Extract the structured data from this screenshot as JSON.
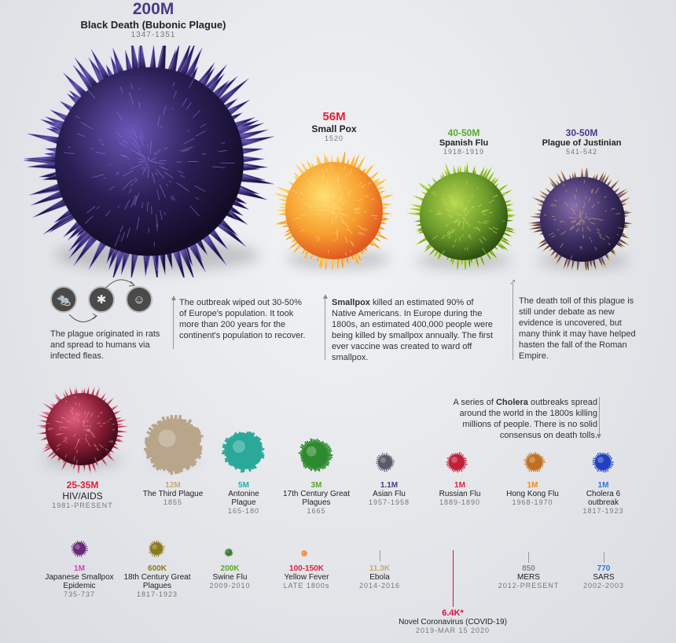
{
  "colors": {
    "black_death": "#3a2a6e",
    "smallpox": "#f6a02a",
    "spanish_flu": "#6a9a2a",
    "justinian": "#4a3a6e",
    "hiv": "#8a1e36",
    "third_plague": "#b8a58a",
    "antonine": "#2aa89a",
    "century17": "#2e8a2e",
    "asian_flu": "#5a5a6a",
    "russian_flu": "#c0203a",
    "hong_kong_flu": "#c07020",
    "cholera": "#2040c0",
    "japanese": "#6a2a7a",
    "century18": "#8a7a20",
    "swine": "#3a7a2a",
    "yellow_fever": "#f09040",
    "ebola": "#c8b08a",
    "mers": "#888888",
    "sars": "#888888",
    "covid": "#e01040",
    "red": "#e0203a",
    "green": "#5aa82a",
    "purple": "#4a3a8a",
    "orange": "#f08a20",
    "teal": "#20b0b0",
    "blue": "#2a7ad8",
    "olive": "#8a7a10",
    "pink": "#d04aa0",
    "tan": "#c8a878",
    "gray": "#888888"
  },
  "black_death": {
    "value": "200M",
    "name": "Black Death (Bubonic Plague)",
    "years": "1347-1351"
  },
  "smallpox": {
    "value": "56M",
    "name": "Small Pox",
    "years": "1520"
  },
  "spanish_flu": {
    "value": "40-50M",
    "name": "Spanish Flu",
    "years": "1918-1919"
  },
  "justinian": {
    "value": "30-50M",
    "name": "Plague of Justinian",
    "years": "541-542"
  },
  "notes": {
    "rats": "The plague originated in rats and spread to humans via infected fleas.",
    "outbreak": "The outbreak wiped out 30-50% of Europe's population. It took more than 200 years for the continent's population to recover.",
    "smallpox_bold": "Smallpox",
    "smallpox_rest": " killed an estimated 90% of Native Americans. In Europe during the 1800s, an estimated 400,000 people were being killed by smallpox annually. The first ever vaccine was created to ward off smallpox.",
    "justinian": "The death toll of this plague is still under debate as new evidence is uncovered, but many think it may have helped hasten the fall of the Roman Empire.",
    "cholera_pre": "A series of ",
    "cholera_bold": "Cholera",
    "cholera_rest": " outbreaks spread around the world in the 1800s killing millions of people. There is no solid consensus on death tolls."
  },
  "row2": [
    {
      "value": "25-35M",
      "name": "HIV/AIDS",
      "years": "1981-PRESENT"
    },
    {
      "value": "12M",
      "name": "The Third Plague",
      "years": "1855"
    },
    {
      "value": "5M",
      "name": "Antonine Plague",
      "years": "165-180"
    },
    {
      "value": "3M",
      "name": "17th Century Great Plagues",
      "years": "1665"
    },
    {
      "value": "1.1M",
      "name": "Asian Flu",
      "years": "1957-1958"
    },
    {
      "value": "1M",
      "name": "Russian Flu",
      "years": "1889-1890"
    },
    {
      "value": "1M",
      "name": "Hong Kong Flu",
      "years": "1968-1970"
    },
    {
      "value": "1M",
      "name": "Cholera 6 outbreak",
      "years": "1817-1923"
    }
  ],
  "row3": [
    {
      "value": "1M",
      "name": "Japanese Smallpox Epidemic",
      "years": "735-737"
    },
    {
      "value": "600K",
      "name": "18th Century Great Plagues",
      "years": "1817-1923"
    },
    {
      "value": "200K",
      "name": "Swine Flu",
      "years": "2009-2010"
    },
    {
      "value": "100-150K",
      "name": "Yellow Fever",
      "years": "LATE 1800s"
    },
    {
      "value": "11.3K",
      "name": "Ebola",
      "years": "2014-2016"
    },
    {
      "value": "850",
      "name": "MERS",
      "years": "2012-PRESENT"
    },
    {
      "value": "770",
      "name": "SARS",
      "years": "2002-2003"
    }
  ],
  "covid": {
    "value": "6.4K*",
    "name": "Novel Coronavirus (COVID-19)",
    "years": "2019-MAR 15 2020"
  },
  "icons": [
    "rat-icon",
    "flea-icon",
    "person-icon"
  ]
}
